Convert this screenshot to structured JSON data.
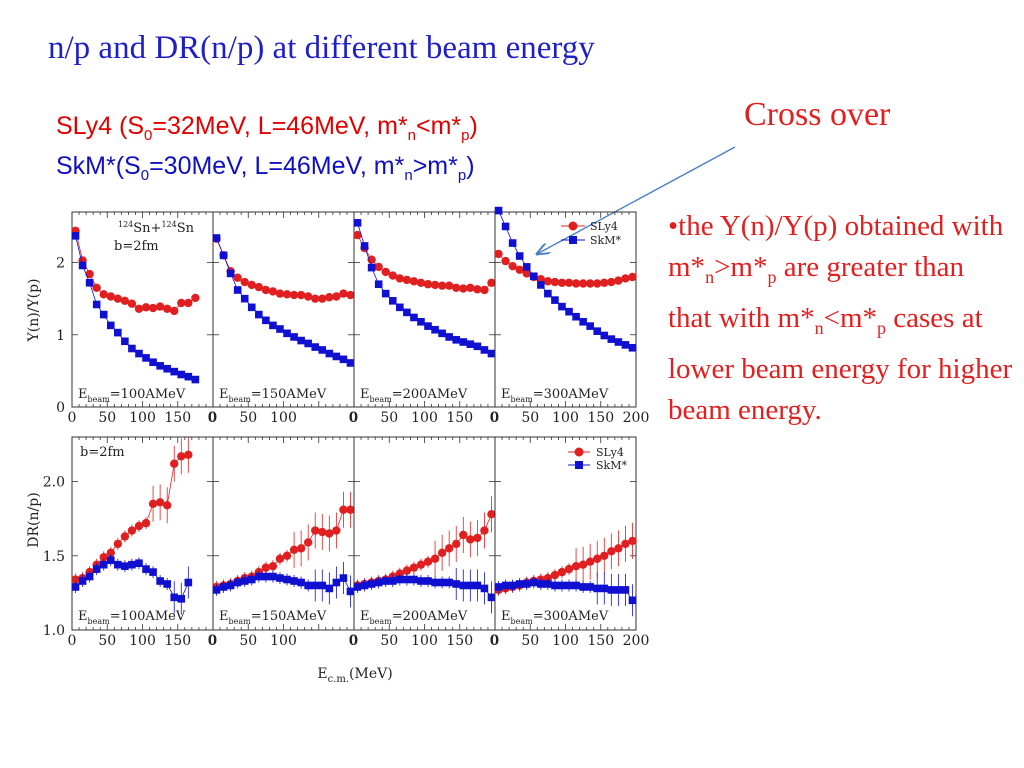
{
  "slide": {
    "title": "n/p and DR(n/p) at different beam energy",
    "sly4_line": [
      "SLy4 (S",
      "0",
      "=32MeV, L=46MeV, m*",
      "n",
      "<m*",
      "p",
      ")"
    ],
    "skm_line": [
      "SkM*(S",
      "0",
      "=30MeV, L=46MeV, m*",
      "n",
      ">m*",
      "p",
      ")"
    ],
    "annotation": "Cross over",
    "bullet": [
      "•the Y(n)/Y(p) obtained with m*",
      "n",
      ">m*",
      "p",
      " are greater than that with m*",
      "n",
      "<m*",
      "p",
      " cases at lower beam energy for higher beam energy."
    ]
  },
  "colors": {
    "title": "#1f1fc8",
    "red": "#e02020",
    "blue": "#1010d0",
    "arrow": "#4a7fc0"
  },
  "chart_data": {
    "type": "scatter",
    "x_label": "E_c.m.(MeV)",
    "reaction_label": "124Sn+124Sn",
    "impact_param": "b=2fm",
    "legend": [
      "SLy4",
      "SkM*"
    ],
    "top_ylabel": "Y(n)/Y(p)",
    "bottom_ylabel": "DR(n/p)",
    "top_ylim": [
      0,
      2.7
    ],
    "bottom_ylim": [
      1.0,
      2.3
    ],
    "top_yticks": [
      "0",
      "1",
      "2"
    ],
    "bottom_yticks": [
      "1.0",
      "1.5",
      "2.0"
    ],
    "panels": [
      {
        "energy_label": "E_beam=100AMeV",
        "energy_text": "=100AMeV",
        "xlim": [
          0,
          200
        ],
        "xticks": [
          "0",
          "50",
          "100",
          "150",
          "0"
        ],
        "top_sly4": {
          "x": [
            5,
            15,
            25,
            35,
            45,
            55,
            65,
            75,
            85,
            95,
            105,
            115,
            125,
            135,
            145,
            155,
            165,
            175
          ],
          "y": [
            2.44,
            2.03,
            1.84,
            1.65,
            1.56,
            1.53,
            1.5,
            1.47,
            1.43,
            1.36,
            1.38,
            1.37,
            1.39,
            1.36,
            1.33,
            1.44,
            1.44,
            1.51
          ]
        },
        "top_skm": {
          "x": [
            5,
            15,
            25,
            35,
            45,
            55,
            65,
            75,
            85,
            95,
            105,
            115,
            125,
            135,
            145,
            155,
            165,
            175
          ],
          "y": [
            2.37,
            1.96,
            1.72,
            1.42,
            1.28,
            1.13,
            1.03,
            0.91,
            0.81,
            0.74,
            0.68,
            0.62,
            0.57,
            0.53,
            0.49,
            0.45,
            0.42,
            0.38
          ]
        },
        "bottom_sly4": {
          "x": [
            5,
            15,
            25,
            35,
            45,
            55,
            65,
            75,
            85,
            95,
            105,
            115,
            125,
            135,
            145,
            155,
            165
          ],
          "y": [
            1.34,
            1.35,
            1.39,
            1.44,
            1.49,
            1.52,
            1.58,
            1.63,
            1.67,
            1.7,
            1.72,
            1.85,
            1.86,
            1.84,
            2.12,
            2.17,
            2.18
          ]
        },
        "bottom_skm": {
          "x": [
            5,
            15,
            25,
            35,
            45,
            55,
            65,
            75,
            85,
            95,
            105,
            115,
            125,
            135,
            145,
            155,
            165
          ],
          "y": [
            1.29,
            1.33,
            1.36,
            1.41,
            1.44,
            1.47,
            1.44,
            1.43,
            1.44,
            1.45,
            1.41,
            1.39,
            1.33,
            1.31,
            1.22,
            1.21,
            1.32
          ]
        }
      },
      {
        "energy_label": "E_beam=150AMeV",
        "energy_text": "=150AMeV",
        "xlim": [
          0,
          200
        ],
        "xticks": [
          "0",
          "50",
          "100",
          "0"
        ],
        "top_sly4": {
          "x": [
            5,
            15,
            25,
            35,
            45,
            55,
            65,
            75,
            85,
            95,
            105,
            115,
            125,
            135,
            145,
            155,
            165,
            175,
            185,
            195
          ],
          "y": [
            2.33,
            2.1,
            1.88,
            1.79,
            1.73,
            1.69,
            1.66,
            1.62,
            1.6,
            1.57,
            1.56,
            1.55,
            1.55,
            1.53,
            1.5,
            1.5,
            1.52,
            1.53,
            1.57,
            1.55
          ]
        },
        "top_skm": {
          "x": [
            5,
            15,
            25,
            35,
            45,
            55,
            65,
            75,
            85,
            95,
            105,
            115,
            125,
            135,
            145,
            155,
            165,
            175,
            185,
            195
          ],
          "y": [
            2.34,
            2.1,
            1.85,
            1.62,
            1.5,
            1.38,
            1.28,
            1.2,
            1.13,
            1.08,
            1.02,
            0.97,
            0.92,
            0.88,
            0.83,
            0.79,
            0.74,
            0.7,
            0.66,
            0.61
          ]
        },
        "bottom_sly4": {
          "x": [
            5,
            15,
            25,
            35,
            45,
            55,
            65,
            75,
            85,
            95,
            105,
            115,
            125,
            135,
            145,
            155,
            165,
            175,
            185,
            195
          ],
          "y": [
            1.29,
            1.3,
            1.31,
            1.33,
            1.35,
            1.36,
            1.39,
            1.42,
            1.43,
            1.48,
            1.5,
            1.54,
            1.55,
            1.59,
            1.67,
            1.66,
            1.65,
            1.67,
            1.81,
            1.81
          ]
        },
        "bottom_skm": {
          "x": [
            5,
            15,
            25,
            35,
            45,
            55,
            65,
            75,
            85,
            95,
            105,
            115,
            125,
            135,
            145,
            155,
            165,
            175,
            185,
            195
          ],
          "y": [
            1.27,
            1.29,
            1.3,
            1.32,
            1.33,
            1.34,
            1.36,
            1.36,
            1.36,
            1.35,
            1.34,
            1.33,
            1.32,
            1.3,
            1.3,
            1.3,
            1.28,
            1.32,
            1.35,
            1.26
          ]
        }
      },
      {
        "energy_label": "E_beam=200AMeV",
        "energy_text": "=200AMeV",
        "xlim": [
          0,
          200
        ],
        "xticks": [
          "0",
          "50",
          "100",
          "150",
          "0"
        ],
        "top_sly4": {
          "x": [
            5,
            15,
            25,
            35,
            45,
            55,
            65,
            75,
            85,
            95,
            105,
            115,
            125,
            135,
            145,
            155,
            165,
            175,
            185,
            195
          ],
          "y": [
            2.38,
            2.2,
            2.04,
            1.94,
            1.87,
            1.82,
            1.78,
            1.76,
            1.74,
            1.72,
            1.7,
            1.69,
            1.68,
            1.68,
            1.65,
            1.64,
            1.65,
            1.63,
            1.62,
            1.72
          ]
        },
        "top_skm": {
          "x": [
            5,
            15,
            25,
            35,
            45,
            55,
            65,
            75,
            85,
            95,
            105,
            115,
            125,
            135,
            145,
            155,
            165,
            175,
            185,
            195
          ],
          "y": [
            2.55,
            2.23,
            1.93,
            1.7,
            1.57,
            1.47,
            1.38,
            1.31,
            1.24,
            1.18,
            1.12,
            1.07,
            1.02,
            0.97,
            0.93,
            0.9,
            0.87,
            0.84,
            0.79,
            0.74
          ]
        },
        "bottom_sly4": {
          "x": [
            5,
            15,
            25,
            35,
            45,
            55,
            65,
            75,
            85,
            95,
            105,
            115,
            125,
            135,
            145,
            155,
            165,
            175,
            185,
            195
          ],
          "y": [
            1.3,
            1.31,
            1.32,
            1.33,
            1.34,
            1.36,
            1.38,
            1.4,
            1.42,
            1.44,
            1.46,
            1.48,
            1.52,
            1.55,
            1.58,
            1.64,
            1.61,
            1.62,
            1.67,
            1.78
          ]
        },
        "bottom_skm": {
          "x": [
            5,
            15,
            25,
            35,
            45,
            55,
            65,
            75,
            85,
            95,
            105,
            115,
            125,
            135,
            145,
            155,
            165,
            175,
            185,
            195
          ],
          "y": [
            1.29,
            1.3,
            1.31,
            1.32,
            1.33,
            1.33,
            1.34,
            1.34,
            1.34,
            1.33,
            1.33,
            1.32,
            1.32,
            1.32,
            1.31,
            1.3,
            1.3,
            1.3,
            1.28,
            1.22
          ]
        }
      },
      {
        "energy_label": "E_beam=300AMeV",
        "energy_text": "=300AMeV",
        "xlim": [
          0,
          200
        ],
        "xticks": [
          "0",
          "50",
          "100",
          "150",
          "200"
        ],
        "top_sly4": {
          "x": [
            5,
            15,
            25,
            35,
            45,
            55,
            65,
            75,
            85,
            95,
            105,
            115,
            125,
            135,
            145,
            155,
            165,
            175,
            185,
            195
          ],
          "y": [
            2.12,
            2.02,
            1.95,
            1.9,
            1.85,
            1.8,
            1.77,
            1.74,
            1.73,
            1.72,
            1.72,
            1.71,
            1.71,
            1.71,
            1.71,
            1.72,
            1.73,
            1.75,
            1.78,
            1.8
          ]
        },
        "top_skm": {
          "x": [
            5,
            15,
            25,
            35,
            45,
            55,
            65,
            75,
            85,
            95,
            105,
            115,
            125,
            135,
            145,
            155,
            165,
            175,
            185,
            195
          ],
          "y": [
            2.72,
            2.5,
            2.27,
            2.09,
            1.94,
            1.81,
            1.69,
            1.57,
            1.48,
            1.39,
            1.32,
            1.25,
            1.18,
            1.12,
            1.05,
            0.99,
            0.94,
            0.9,
            0.86,
            0.82
          ]
        },
        "bottom_sly4": {
          "x": [
            5,
            15,
            25,
            35,
            45,
            55,
            65,
            75,
            85,
            95,
            105,
            115,
            125,
            135,
            145,
            155,
            165,
            175,
            185,
            195
          ],
          "y": [
            1.27,
            1.28,
            1.29,
            1.3,
            1.32,
            1.33,
            1.34,
            1.35,
            1.37,
            1.39,
            1.41,
            1.43,
            1.44,
            1.46,
            1.48,
            1.5,
            1.53,
            1.55,
            1.58,
            1.6
          ]
        },
        "bottom_skm": {
          "x": [
            5,
            15,
            25,
            35,
            45,
            55,
            65,
            75,
            85,
            95,
            105,
            115,
            125,
            135,
            145,
            155,
            165,
            175,
            185,
            195
          ],
          "y": [
            1.29,
            1.3,
            1.3,
            1.31,
            1.31,
            1.32,
            1.31,
            1.31,
            1.3,
            1.3,
            1.3,
            1.3,
            1.29,
            1.29,
            1.28,
            1.28,
            1.27,
            1.27,
            1.27,
            1.2
          ]
        }
      }
    ]
  }
}
